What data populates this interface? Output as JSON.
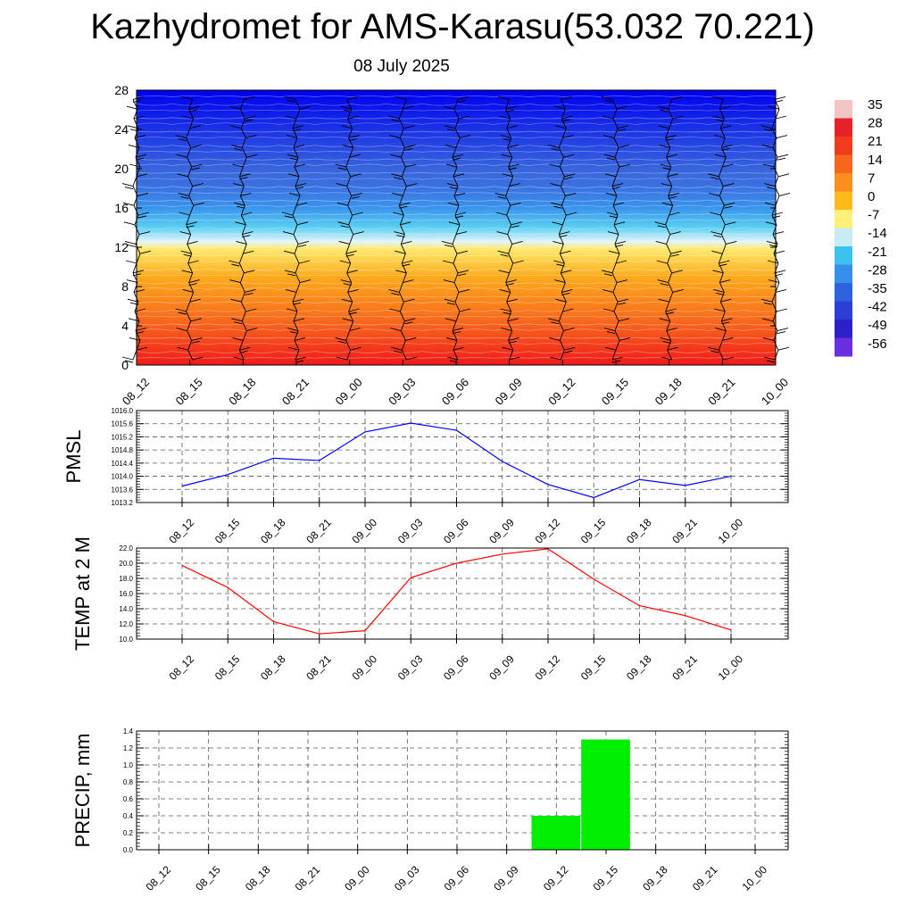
{
  "title": "Kazhydromet for AMS-Karasu(53.032 70.221)",
  "subtitle": "08 July 2025",
  "time_labels": [
    "08_12",
    "08_15",
    "08_18",
    "08_21",
    "09_00",
    "09_03",
    "09_06",
    "09_09",
    "09_12",
    "09_15",
    "09_18",
    "09_21",
    "10_00"
  ],
  "chart_data": [
    {
      "type": "heatmap",
      "description_key": "height-time temperature cross-section with wind barbs",
      "x": [
        "08_12",
        "08_15",
        "08_18",
        "08_21",
        "09_00",
        "09_03",
        "09_06",
        "09_09",
        "09_12",
        "09_15",
        "09_18",
        "09_21",
        "10_00"
      ],
      "ylim": [
        0,
        28
      ],
      "yticks": [
        0,
        4,
        8,
        12,
        16,
        20,
        24,
        28
      ],
      "colorbar": {
        "labels": [
          "35",
          "28",
          "21",
          "14",
          "7",
          "0",
          "-7",
          "-14",
          "-21",
          "-28",
          "-35",
          "-42",
          "-49",
          "-56"
        ],
        "colors": [
          "#f2c4c4",
          "#e8202a",
          "#f23a1c",
          "#f7661c",
          "#fb8e1c",
          "#ffba1c",
          "#fff07a",
          "#c8ecf6",
          "#3cc2ee",
          "#3490ea",
          "#2f62df",
          "#2c3ed4",
          "#2a22c8",
          "#6a2fe0"
        ]
      },
      "color_profile": {
        "heights": [
          0,
          3,
          6,
          9,
          11.8,
          12.6,
          14,
          16,
          18,
          20,
          24,
          28
        ],
        "colors": [
          "#f0191a",
          "#f5501c",
          "#fa7f1c",
          "#fdaa1c",
          "#ffe86a",
          "#e2f4fa",
          "#5ad0f2",
          "#3a94ec",
          "#3a72e2",
          "#3864dc",
          "#1a32e6",
          "#0000ee"
        ]
      }
    },
    {
      "type": "line",
      "ylabel": "PMSL",
      "x": [
        "08_12",
        "08_15",
        "08_18",
        "08_21",
        "09_00",
        "09_03",
        "09_06",
        "09_09",
        "09_12",
        "09_15",
        "09_18",
        "09_21",
        "10_00"
      ],
      "series": [
        {
          "values": [
            1013.7,
            1014.05,
            1014.55,
            1014.48,
            1015.35,
            1015.62,
            1015.4,
            1014.45,
            1013.75,
            1013.35,
            1013.9,
            1013.72,
            1014.0
          ],
          "color": "#0000ff"
        }
      ],
      "ylim": [
        1013.2,
        1016.0
      ],
      "yticks": [
        "1013.2",
        "1013.6",
        "1014.0",
        "1014.4",
        "1014.8",
        "1015.2",
        "1015.6",
        "1016.0"
      ],
      "grid": true
    },
    {
      "type": "line",
      "ylabel": "TEMP at 2 M",
      "x": [
        "08_12",
        "08_15",
        "08_18",
        "08_21",
        "09_00",
        "09_03",
        "09_06",
        "09_09",
        "09_12",
        "09_15",
        "09_18",
        "09_21",
        "10_00"
      ],
      "series": [
        {
          "values": [
            19.7,
            16.8,
            12.3,
            10.7,
            11.1,
            18.1,
            20.0,
            21.2,
            21.9,
            17.9,
            14.4,
            13.1,
            11.2
          ],
          "color": "#ff0000"
        }
      ],
      "ylim": [
        10.0,
        22.0
      ],
      "yticks": [
        "10.0",
        "12.0",
        "14.0",
        "16.0",
        "18.0",
        "20.0",
        "22.0"
      ],
      "grid": true
    },
    {
      "type": "bar",
      "ylabel": "PRECIP, mm",
      "x": [
        "08_12",
        "08_15",
        "08_18",
        "08_21",
        "09_00",
        "09_03",
        "09_06",
        "09_09",
        "09_12",
        "09_15",
        "09_18",
        "09_21",
        "10_00"
      ],
      "values": [
        0,
        0,
        0,
        0,
        0,
        0,
        0,
        0,
        0.4,
        1.3,
        0,
        0,
        0
      ],
      "color": "#00ee00",
      "ylim": [
        0.0,
        1.4
      ],
      "yticks": [
        "0.0",
        "0.2",
        "0.4",
        "0.6",
        "0.8",
        "1.0",
        "1.2",
        "1.4"
      ],
      "grid": true
    }
  ]
}
